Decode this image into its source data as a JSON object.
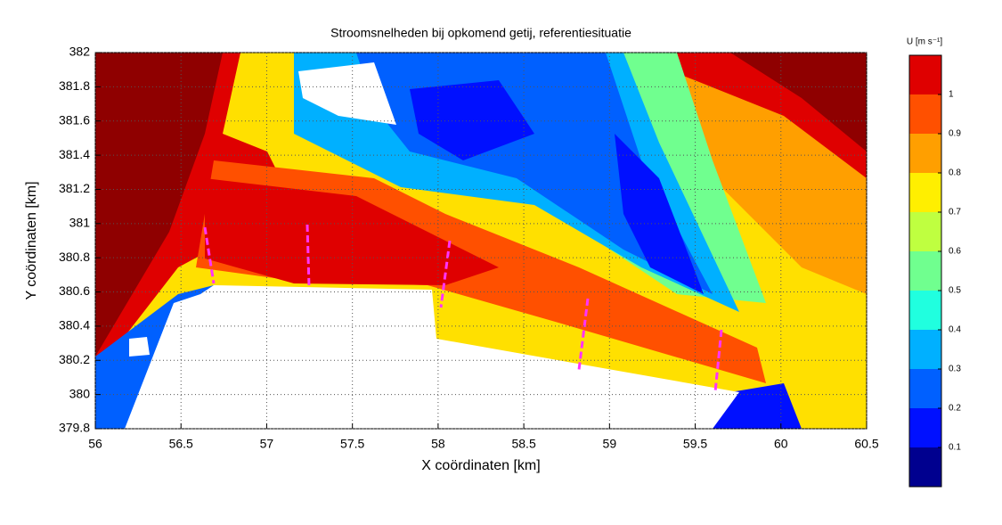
{
  "chart_data": {
    "type": "contour",
    "title": "Stroomsnelheden bij opkomend getij, referentiesituatie",
    "x_label": "X coördinaten [km]",
    "y_label": "Y coördinaten [km]",
    "xlim": [
      56,
      60.5
    ],
    "xticks": [
      56,
      56.5,
      57,
      57.5,
      58,
      58.5,
      59,
      59.5,
      60,
      60.5
    ],
    "ylim": [
      379.8,
      382
    ],
    "yticks": [
      379.8,
      380,
      380.2,
      380.4,
      380.6,
      380.8,
      381,
      381.2,
      381.4,
      381.6,
      381.8,
      382
    ],
    "grid": true,
    "colorbar": {
      "label": "U [m s⁻¹]",
      "lim": [
        0,
        1.1
      ],
      "levels": [
        0,
        0.1,
        0.2,
        0.3,
        0.4,
        0.5,
        0.6,
        0.7,
        0.8,
        0.9,
        1,
        1.1
      ],
      "colors": [
        "#00008f",
        "#0010ff",
        "#0060ff",
        "#00b0ff",
        "#20ffdf",
        "#70ff8f",
        "#bfff40",
        "#ffef00",
        "#ff9f00",
        "#ff5000",
        "#df0000",
        "#8f0000"
      ],
      "ticks": [
        0.1,
        0.2,
        0.3,
        0.4,
        0.5,
        0.6,
        0.7,
        0.8,
        0.9,
        1
      ]
    }
  }
}
